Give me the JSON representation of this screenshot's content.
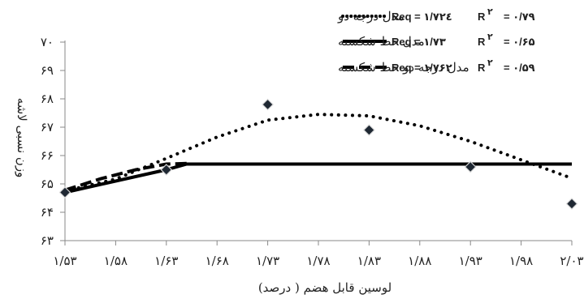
{
  "chart_data": {
    "type": "line",
    "xlabel": "لوسین قابل هضم ( درصد)",
    "ylabel": "وزن نسبی لاشه",
    "xlim": [
      1.53,
      2.03
    ],
    "ylim": [
      63,
      70
    ],
    "x_ticks": [
      1.53,
      1.58,
      1.63,
      1.68,
      1.73,
      1.78,
      1.83,
      1.88,
      1.93,
      1.98,
      2.03
    ],
    "x_tick_labels": [
      "۱/۵۳",
      "۱/۵۸",
      "۱/۶۳",
      "۱/۶۸",
      "۱/۷۳",
      "۱/۷۸",
      "۱/۸۳",
      "۱/۸۸",
      "۱/۹۳",
      "۱/۹۸",
      "۲/۰۳"
    ],
    "y_ticks": [
      63,
      64,
      65,
      66,
      67,
      68,
      69,
      70
    ],
    "y_tick_labels": [
      "۶۳",
      "۶۴",
      "۶۵",
      "۶۶",
      "۶۷",
      "۶۸",
      "۶۹",
      "۷۰"
    ],
    "grid": false,
    "legend_position": "top-right",
    "points": {
      "marker": "diamond",
      "x": [
        1.53,
        1.63,
        1.73,
        1.83,
        1.93,
        2.03
      ],
      "y": [
        64.7,
        65.5,
        67.8,
        66.9,
        65.6,
        64.3
      ]
    },
    "series": [
      {
        "name": "مدل درجه دو",
        "style": "dotted",
        "equation": "Req = ۱/۷۲٤",
        "r2_label": "R",
        "r2_superscript": "۲",
        "r2_value": "= ۰/۷۹",
        "x": [
          1.53,
          1.58,
          1.63,
          1.68,
          1.73,
          1.78,
          1.83,
          1.88,
          1.93,
          1.98,
          2.03
        ],
        "y": [
          64.75,
          65.17,
          65.9,
          66.65,
          67.25,
          67.45,
          67.4,
          67.05,
          66.5,
          65.85,
          65.2
        ]
      },
      {
        "name": "مدل خط شکسته",
        "style": "solid",
        "equation": "Req = ۱/۷۳",
        "r2_label": "R",
        "r2_superscript": "۲",
        "r2_value": "= ۰/۶۵",
        "x": [
          1.53,
          1.63,
          1.65,
          2.03
        ],
        "y": [
          64.7,
          65.5,
          65.7,
          65.7
        ]
      },
      {
        "name": "مدل درجه دو-خط شکسته",
        "style": "dashed",
        "equation": "Req = ۱/۷۶۲",
        "r2_label": "R",
        "r2_superscript": "۲",
        "r2_value": "= ۰/۵۹",
        "x": [
          1.53,
          1.565,
          1.6,
          1.63,
          1.65
        ],
        "y": [
          64.78,
          65.18,
          65.5,
          65.7,
          65.72
        ]
      }
    ]
  },
  "colors": {
    "line": "#000000",
    "marker_fill": "#1f2833",
    "marker_highlight": "#d8d8d8"
  }
}
